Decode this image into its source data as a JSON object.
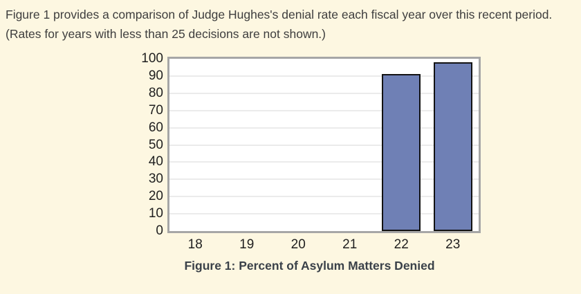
{
  "intro": {
    "text": "Figure 1 provides a comparison of Judge Hughes's denial rate each fiscal year over this recent period. (Rates for years with less than 25 decisions are not shown.)"
  },
  "caption": "Figure 1: Percent of Asylum Matters Denied",
  "colors": {
    "background": "#fdf7e1",
    "bar_fill": "#6f80b5",
    "bar_border": "#121212",
    "plot_border": "#a6a6a6",
    "gridline": "#ebebeb",
    "text": "#3e3e3e",
    "axis_text": "#1f1f1f",
    "caption_text": "#3a4149"
  },
  "chart_data": {
    "type": "bar",
    "categories": [
      "18",
      "19",
      "20",
      "21",
      "22",
      "23"
    ],
    "values": [
      null,
      null,
      null,
      null,
      91,
      98
    ],
    "title": "Figure 1: Percent of Asylum Matters Denied",
    "xlabel": "",
    "ylabel": "",
    "ylim": [
      0,
      100
    ],
    "ytick_step": 10,
    "grid": "horizontal",
    "legend": "none"
  }
}
